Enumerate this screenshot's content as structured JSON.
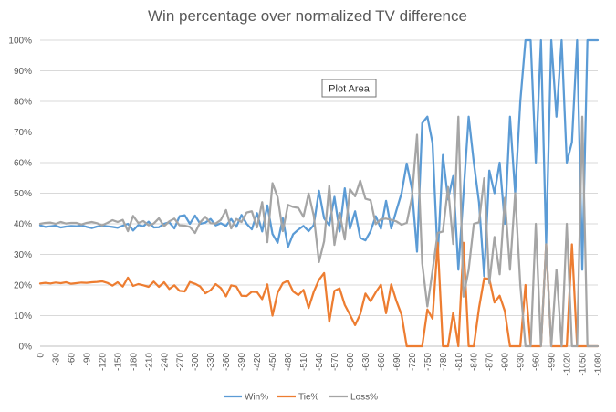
{
  "chart_data": {
    "type": "line",
    "title": "Win percentage over normalized TV difference",
    "xlabel": "",
    "ylabel": "",
    "ylim": [
      0,
      100
    ],
    "y_ticks": [
      "0%",
      "10%",
      "20%",
      "30%",
      "40%",
      "50%",
      "60%",
      "70%",
      "80%",
      "90%",
      "100%"
    ],
    "x": [
      0,
      -10,
      -20,
      -30,
      -40,
      -50,
      -60,
      -70,
      -80,
      -90,
      -100,
      -110,
      -120,
      -130,
      -140,
      -150,
      -160,
      -170,
      -180,
      -190,
      -200,
      -210,
      -220,
      -230,
      -240,
      -250,
      -260,
      -270,
      -280,
      -290,
      -300,
      -310,
      -320,
      -330,
      -340,
      -350,
      -360,
      -370,
      -380,
      -390,
      -400,
      -410,
      -420,
      -430,
      -440,
      -450,
      -460,
      -470,
      -480,
      -490,
      -500,
      -510,
      -520,
      -530,
      -540,
      -550,
      -560,
      -570,
      -580,
      -590,
      -600,
      -610,
      -620,
      -630,
      -640,
      -650,
      -660,
      -670,
      -680,
      -690,
      -700,
      -710,
      -720,
      -730,
      -740,
      -750,
      -760,
      -770,
      -780,
      -790,
      -800,
      -810,
      -820,
      -830,
      -840,
      -850,
      -860,
      -870,
      -880,
      -890,
      -900,
      -910,
      -920,
      -930,
      -940,
      -950,
      -960,
      -970,
      -980,
      -990,
      -1000,
      -1010,
      -1020,
      -1030,
      -1040,
      -1050,
      -1060,
      -1070,
      -1080
    ],
    "x_tick_labels": [
      "0",
      "-30",
      "-60",
      "-90",
      "-120",
      "-150",
      "-180",
      "-210",
      "-240",
      "-270",
      "-300",
      "-330",
      "-360",
      "-390",
      "-420",
      "-450",
      "-480",
      "-510",
      "-540",
      "-570",
      "-600",
      "-630",
      "-660",
      "-690",
      "-720",
      "-750",
      "-780",
      "-810",
      "-840",
      "-870",
      "-900",
      "-930",
      "-960",
      "-990",
      "-1020",
      "-1050",
      "-1080"
    ],
    "series": [
      {
        "name": "Win%",
        "color": "#5B9BD5",
        "values": [
          39.5,
          39.0,
          39.2,
          39.4,
          38.8,
          39.1,
          39.3,
          39.2,
          39.5,
          39.0,
          38.6,
          39.1,
          39.4,
          39.2,
          39.0,
          38.7,
          39.4,
          40.0,
          37.8,
          39.6,
          39.2,
          40.7,
          38.8,
          38.9,
          40.0,
          40.5,
          38.5,
          42.5,
          42.8,
          40.0,
          42.7,
          40.0,
          40.4,
          41.6,
          39.5,
          40.2,
          39.3,
          41.6,
          39.0,
          42.9,
          40.0,
          38.2,
          43.5,
          37.5,
          46.0,
          36.7,
          33.8,
          41.8,
          32.4,
          36.6,
          38.1,
          39.3,
          37.6,
          39.6,
          50.8,
          41.8,
          39.5,
          48.8,
          37.5,
          51.6,
          38.4,
          44.1,
          35.4,
          34.6,
          37.6,
          42.5,
          38.4,
          47.5,
          38.5,
          44.4,
          50.0,
          59.7,
          51.5,
          30.9,
          72.9,
          75.0,
          66.4,
          29.2,
          62.5,
          48.0,
          55.6,
          25.0,
          50.0,
          75.0,
          60.0,
          47.0,
          22.9,
          57.4,
          50.0,
          60.0,
          40.0,
          75.0,
          50.0,
          80.0,
          100.0,
          100.0,
          60.0,
          100.0,
          33.3,
          100.0,
          75.0,
          100.0,
          60.0,
          66.7,
          100.0,
          25.0,
          100.0,
          100.0,
          100.0
        ]
      },
      {
        "name": "Tie%",
        "color": "#ED7D31",
        "values": [
          20.5,
          20.7,
          20.5,
          20.8,
          20.6,
          20.9,
          20.4,
          20.6,
          20.8,
          20.7,
          20.9,
          21.0,
          21.2,
          20.7,
          19.8,
          20.9,
          19.5,
          22.4,
          19.7,
          20.3,
          19.9,
          19.4,
          21.1,
          19.4,
          20.9,
          18.7,
          19.9,
          18.1,
          17.9,
          21.0,
          20.4,
          19.5,
          17.3,
          18.3,
          20.3,
          19.0,
          16.3,
          19.9,
          19.5,
          16.5,
          16.4,
          17.8,
          17.7,
          15.4,
          20.2,
          10.0,
          17.5,
          20.6,
          21.4,
          17.9,
          16.7,
          18.4,
          12.5,
          17.8,
          21.7,
          23.9,
          8.0,
          18.1,
          18.9,
          13.5,
          10.3,
          6.9,
          10.5,
          17.2,
          14.7,
          17.6,
          20.1,
          10.8,
          20.2,
          14.8,
          10.3,
          0.0,
          0.0,
          0.0,
          0.0,
          12.0,
          9.0,
          33.8,
          0.0,
          0.0,
          11.0,
          0.0,
          33.8,
          0.0,
          0.0,
          12.5,
          22.2,
          22.0,
          14.3,
          16.5,
          11.5,
          0.0,
          0.0,
          0.0,
          20.0,
          0.0,
          0.0,
          0.0,
          33.3,
          0.0,
          0.0,
          0.0,
          0.0,
          33.3,
          0.0,
          0.0,
          0.0,
          0.0,
          0.0
        ]
      },
      {
        "name": "Loss%",
        "color": "#A5A5A5",
        "values": [
          40.0,
          40.3,
          40.4,
          40.0,
          40.6,
          40.1,
          40.3,
          40.3,
          39.8,
          40.3,
          40.6,
          40.2,
          39.5,
          40.3,
          41.2,
          40.6,
          41.3,
          37.6,
          42.6,
          40.3,
          40.9,
          39.5,
          40.1,
          41.8,
          39.2,
          40.8,
          41.7,
          39.5,
          39.4,
          39.0,
          37.0,
          40.5,
          42.3,
          40.2,
          40.1,
          41.3,
          44.5,
          38.5,
          41.6,
          40.6,
          43.7,
          44.1,
          38.8,
          47.1,
          34.0,
          53.3,
          48.7,
          37.6,
          46.2,
          45.5,
          45.2,
          42.3,
          49.9,
          42.6,
          27.5,
          34.3,
          52.5,
          33.1,
          43.6,
          34.9,
          51.3,
          49.0,
          54.1,
          48.2,
          47.7,
          39.9,
          41.5,
          41.7,
          41.3,
          40.8,
          39.7,
          40.3,
          48.5,
          69.1,
          27.1,
          13.0,
          24.6,
          37.0,
          37.5,
          52.0,
          33.4,
          75.0,
          16.2,
          25.0,
          40.0,
          40.5,
          54.9,
          20.6,
          35.7,
          23.5,
          48.5,
          25.0,
          50.0,
          20.0,
          0.0,
          0.0,
          40.0,
          0.0,
          33.3,
          0.0,
          25.0,
          0.0,
          40.0,
          0.0,
          0.0,
          75.0,
          0.0,
          0.0,
          0.0
        ]
      }
    ],
    "legend": {
      "position": "bottom",
      "entries": [
        "Win%",
        "Tie%",
        "Loss%"
      ]
    },
    "grid": true,
    "tooltip": "Plot Area"
  }
}
